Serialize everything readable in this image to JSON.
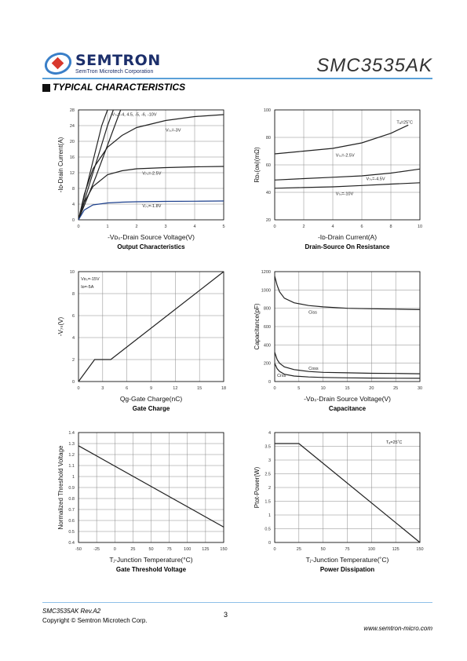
{
  "header": {
    "brand": "SEMTRON",
    "brand_sub": "SemTron Microtech Corporation",
    "part_number": "SMC3535AK",
    "section_title": "TYPICAL CHARACTERISTICS"
  },
  "charts": [
    {
      "type": "line",
      "caption": "Output Characteristics",
      "xlabel": "-V₂ₛ-Drain Source Voltage(V)",
      "xlabel_text": "-Vᴅₛ-Drain Source Voltage(V)",
      "ylabel": "-Iᴅ-Drain Current(A)",
      "xlim": [
        0,
        5
      ],
      "ylim": [
        0,
        28
      ],
      "xticks": [
        "0",
        "1",
        "2",
        "3",
        "4",
        "5"
      ],
      "yticks": [
        "0",
        "4",
        "8",
        "12",
        "16",
        "20",
        "24",
        "28"
      ],
      "annotations": [
        "V₇ₛ=-4, 4.5, -5, -6, -10V",
        "V₇ₛ=-3V",
        "V₇ₛ=-2.5V",
        "V₇ₛ=-1.8V"
      ],
      "series": [
        {
          "x": [
            0,
            0.2,
            0.4,
            0.6,
            0.8,
            1.0
          ],
          "y": [
            0,
            6,
            12,
            18,
            24,
            28
          ]
        },
        {
          "x": [
            0,
            0.25,
            0.5,
            0.75,
            1.0,
            1.2
          ],
          "y": [
            0,
            6,
            12,
            18,
            24,
            28
          ]
        },
        {
          "x": [
            0,
            0.3,
            0.6,
            0.9,
            1.2,
            1.45
          ],
          "y": [
            0,
            5.5,
            11,
            17,
            23,
            28
          ]
        },
        {
          "x": [
            0,
            0.2,
            0.5,
            1,
            1.5,
            2,
            3,
            4,
            5
          ],
          "y": [
            0,
            6.5,
            13,
            18.5,
            21.5,
            23.5,
            25.3,
            26.3,
            26.8
          ]
        },
        {
          "x": [
            0,
            0.2,
            0.5,
            1,
            1.5,
            2,
            3,
            4,
            5
          ],
          "y": [
            0,
            4.5,
            8.5,
            11.5,
            12.5,
            13,
            13.3,
            13.5,
            13.6
          ]
        },
        {
          "x": [
            0,
            0.2,
            0.5,
            1,
            1.5,
            2,
            3,
            4,
            5
          ],
          "y": [
            0,
            2.5,
            3.8,
            4.3,
            4.5,
            4.6,
            4.7,
            4.75,
            4.8
          ]
        }
      ]
    },
    {
      "type": "line",
      "caption": "Drain-Source On Resistance",
      "xlabel": "-Iᴅ-Drain Current(A)",
      "ylabel": "Rᴅₛ(ᴏɴ)(mΩ)",
      "xlim": [
        0,
        10
      ],
      "ylim": [
        20,
        100
      ],
      "xticks": [
        "0",
        "2",
        "4",
        "6",
        "8",
        "10"
      ],
      "yticks": [
        "20",
        "40",
        "60",
        "80",
        "100"
      ],
      "annotations": [
        "Tₐ=25˚C",
        "V₇ₛ=-2.5V",
        "V₇ₛ=-4.5V",
        "V₇ₛ=-10V"
      ],
      "series": [
        {
          "x": [
            0,
            2,
            4,
            6,
            8,
            9.2
          ],
          "y": [
            68,
            70,
            72,
            76,
            83,
            89
          ]
        },
        {
          "x": [
            0,
            2,
            4,
            6,
            8,
            10
          ],
          "y": [
            49,
            50,
            51,
            52,
            54,
            57
          ]
        },
        {
          "x": [
            0,
            2,
            4,
            6,
            8,
            10
          ],
          "y": [
            43,
            43.5,
            44,
            45,
            46,
            47
          ]
        }
      ]
    },
    {
      "type": "line",
      "caption": "Gate Charge",
      "xlabel": "Qg-Gate Charge(nC)",
      "ylabel": "-V₇ₛ(V)",
      "xlim": [
        0,
        18
      ],
      "ylim": [
        0,
        10
      ],
      "xticks": [
        "0",
        "3",
        "6",
        "9",
        "12",
        "15",
        "18"
      ],
      "yticks": [
        "0",
        "2",
        "4",
        "6",
        "8",
        "10"
      ],
      "annotations": [
        "Vᴅₛ=-15V",
        "Iᴅ=-5A"
      ],
      "series": [
        {
          "x": [
            0,
            2,
            4,
            18
          ],
          "y": [
            0,
            2,
            2,
            10
          ]
        }
      ]
    },
    {
      "type": "line",
      "caption": "Capacitance",
      "xlabel": "-Vᴅₛ-Drain Source Voltage(V)",
      "ylabel": "Capacitance(pF)",
      "xlim": [
        0,
        30
      ],
      "ylim": [
        0,
        1200
      ],
      "xticks": [
        "0",
        "5",
        "10",
        "15",
        "20",
        "25",
        "30"
      ],
      "yticks": [
        "0",
        "200",
        "400",
        "600",
        "800",
        "1000",
        "1200"
      ],
      "annotations": [
        "Ciss",
        "Coss",
        "Crss"
      ],
      "series": [
        {
          "x": [
            0,
            0.5,
            1,
            2,
            4,
            7,
            10,
            15,
            20,
            25,
            30
          ],
          "y": [
            1150,
            1050,
            980,
            910,
            860,
            830,
            815,
            800,
            795,
            790,
            785
          ]
        },
        {
          "x": [
            0,
            0.5,
            1,
            2,
            4,
            7,
            10,
            15,
            20,
            25,
            30
          ],
          "y": [
            320,
            240,
            200,
            160,
            130,
            110,
            100,
            95,
            90,
            88,
            85
          ]
        },
        {
          "x": [
            0,
            0.5,
            1,
            2,
            4,
            7,
            10,
            15,
            20,
            25,
            30
          ],
          "y": [
            200,
            140,
            110,
            80,
            60,
            50,
            45,
            40,
            38,
            36,
            35
          ]
        }
      ]
    },
    {
      "type": "line",
      "caption": "Gate Threshold Voltage",
      "xlabel": "Tⱼ-Junction Temperature(°C)",
      "ylabel": "Normalized Threshold Voltage",
      "xlim": [
        -50,
        150
      ],
      "ylim": [
        0.4,
        1.4
      ],
      "xticks": [
        "-50",
        "-25",
        "0",
        "25",
        "50",
        "75",
        "100",
        "125",
        "150"
      ],
      "yticks": [
        "0.4",
        "0.5",
        "0.6",
        "0.7",
        "0.8",
        "0.9",
        "1",
        "1.1",
        "1.2",
        "1.3",
        "1.4"
      ],
      "annotations": [],
      "series": [
        {
          "x": [
            -50,
            150
          ],
          "y": [
            1.28,
            0.54
          ]
        }
      ]
    },
    {
      "type": "line",
      "caption": "Power Dissipation",
      "xlabel": "Tⱼ-Junction Temperature(˚C)",
      "ylabel": "Ptot-Power(W)",
      "xlim": [
        0,
        150
      ],
      "ylim": [
        0,
        4
      ],
      "xticks": [
        "0",
        "25",
        "50",
        "75",
        "100",
        "125",
        "150"
      ],
      "yticks": [
        "0",
        "0.5",
        "1",
        "1.5",
        "2",
        "2.5",
        "3",
        "3.5",
        "4"
      ],
      "annotations": [
        "Tₐ=25˚C"
      ],
      "series": [
        {
          "x": [
            0,
            25,
            150
          ],
          "y": [
            3.6,
            3.6,
            0
          ]
        }
      ]
    }
  ],
  "footer": {
    "revision": "SMC3535AK Rev.A2",
    "copyright": "Copyright © Semtron Microtech Corp.",
    "page": "3",
    "website": "www.semtron-micro.com"
  },
  "colors": {
    "accent": "#5aa0d8",
    "brand": "#1c2f6b",
    "logo_red": "#d8382c"
  }
}
